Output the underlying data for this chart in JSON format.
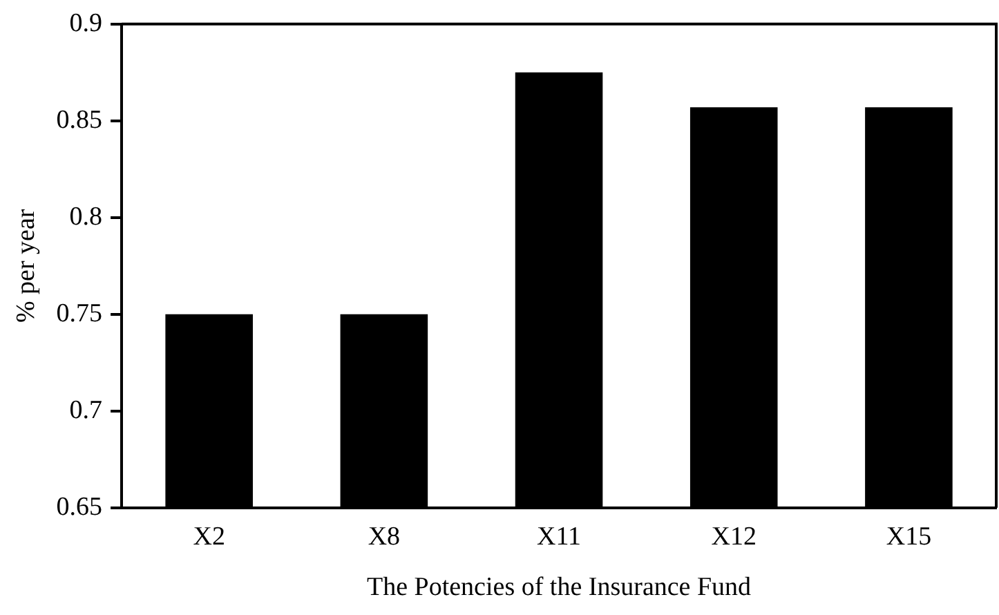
{
  "chart_data": {
    "type": "bar",
    "xlabel": "The Potencies of the Insurance Fund",
    "ylabel": "% per year",
    "categories": [
      "X2",
      "X8",
      "X11",
      "X12",
      "X15"
    ],
    "values": [
      0.75,
      0.75,
      0.875,
      0.857,
      0.857
    ],
    "color": "#000000",
    "ylim": [
      0.65,
      0.9
    ],
    "yticks": [
      0.65,
      0.7,
      0.75,
      0.8,
      0.85,
      0.9
    ],
    "grid": false,
    "legend": false
  }
}
